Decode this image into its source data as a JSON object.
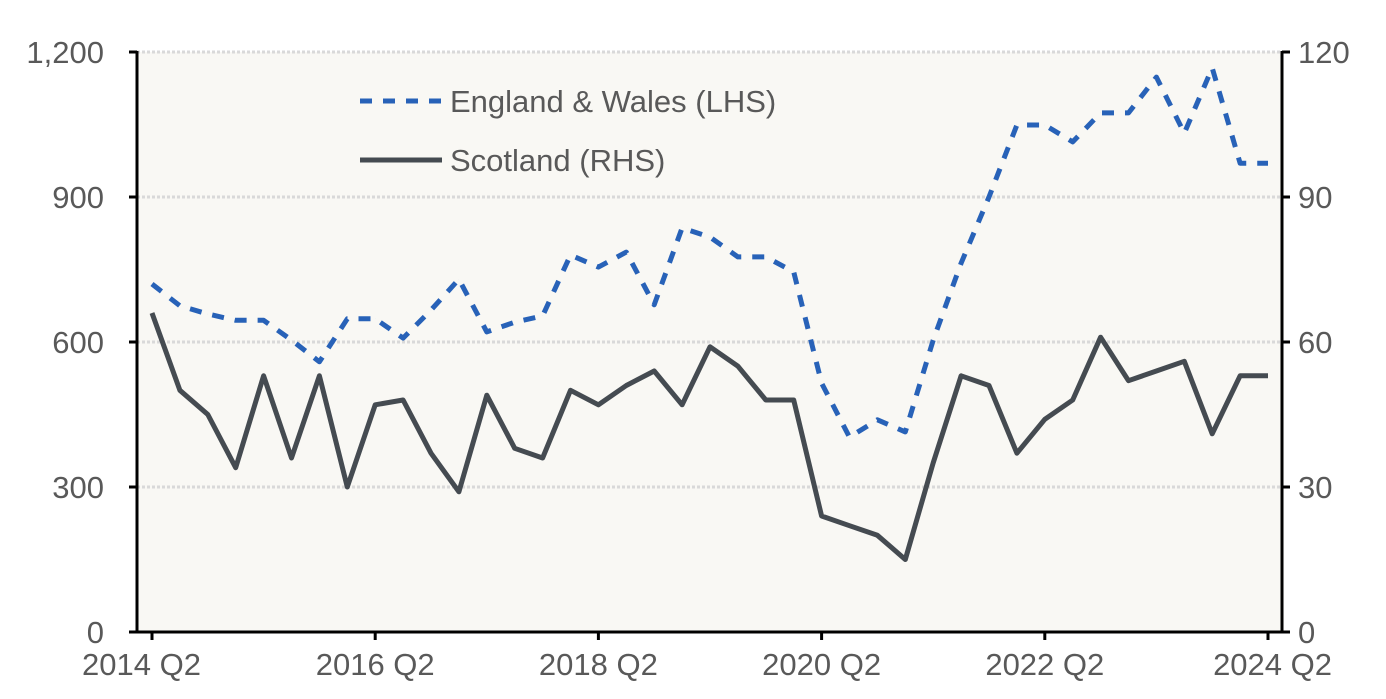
{
  "chart_data": {
    "type": "line",
    "title": "",
    "xlabel": "",
    "ylabel_left": "",
    "ylabel_right": "",
    "x_ticks": [
      "2014 Q2",
      "2016 Q2",
      "2018 Q2",
      "2020 Q2",
      "2022 Q2",
      "2024 Q2"
    ],
    "y_left": {
      "range": [
        0,
        1200
      ],
      "ticks": [
        "0",
        "300",
        "600",
        "900",
        "1,200"
      ],
      "tick_values": [
        0,
        300,
        600,
        900,
        1200
      ]
    },
    "y_right": {
      "range": [
        0,
        120
      ],
      "ticks": [
        "0",
        "30",
        "60",
        "90",
        "120"
      ],
      "tick_values": [
        0,
        30,
        60,
        90,
        120
      ]
    },
    "grid": true,
    "legend_position": "top-left",
    "x": [
      "2014 Q2",
      "2014 Q3",
      "2014 Q4",
      "2015 Q1",
      "2015 Q2",
      "2015 Q3",
      "2015 Q4",
      "2016 Q1",
      "2016 Q2",
      "2016 Q3",
      "2016 Q4",
      "2017 Q1",
      "2017 Q2",
      "2017 Q3",
      "2017 Q4",
      "2018 Q1",
      "2018 Q2",
      "2018 Q3",
      "2018 Q4",
      "2019 Q1",
      "2019 Q2",
      "2019 Q3",
      "2019 Q4",
      "2020 Q1",
      "2020 Q2",
      "2020 Q3",
      "2020 Q4",
      "2021 Q1",
      "2021 Q2",
      "2021 Q3",
      "2021 Q4",
      "2022 Q1",
      "2022 Q2",
      "2022 Q3",
      "2022 Q4",
      "2023 Q1",
      "2023 Q2",
      "2023 Q3",
      "2023 Q4",
      "2024 Q1",
      "2024 Q2"
    ],
    "series": [
      {
        "name": "England & Wales (LHS)",
        "axis": "left",
        "style": "dashed",
        "color": "#2862b8",
        "values": [
          720,
          675,
          658,
          645,
          645,
          604,
          559,
          648,
          648,
          608,
          666,
          730,
          621,
          641,
          654,
          780,
          755,
          786,
          677,
          836,
          817,
          776,
          776,
          745,
          515,
          403,
          439,
          414,
          604,
          763,
          900,
          1049,
          1049,
          1014,
          1074,
          1074,
          1148,
          1032,
          1167,
          970,
          970
        ]
      },
      {
        "name": "Scotland (RHS)",
        "axis": "right",
        "style": "solid",
        "color": "#454b51",
        "values": [
          66,
          50,
          45,
          34,
          53,
          36,
          53,
          30,
          47,
          48,
          37,
          29,
          49,
          38,
          36,
          50,
          47,
          51,
          54,
          47,
          59,
          55,
          48,
          48,
          24,
          22,
          20,
          15,
          35,
          53,
          51,
          37,
          44,
          48,
          61,
          52,
          54,
          56,
          41,
          53,
          53
        ]
      }
    ]
  },
  "colors": {
    "plot_background": "#f9f8f4",
    "grid": "#d9d9d9",
    "axis": "#000000",
    "text": "#595959"
  }
}
